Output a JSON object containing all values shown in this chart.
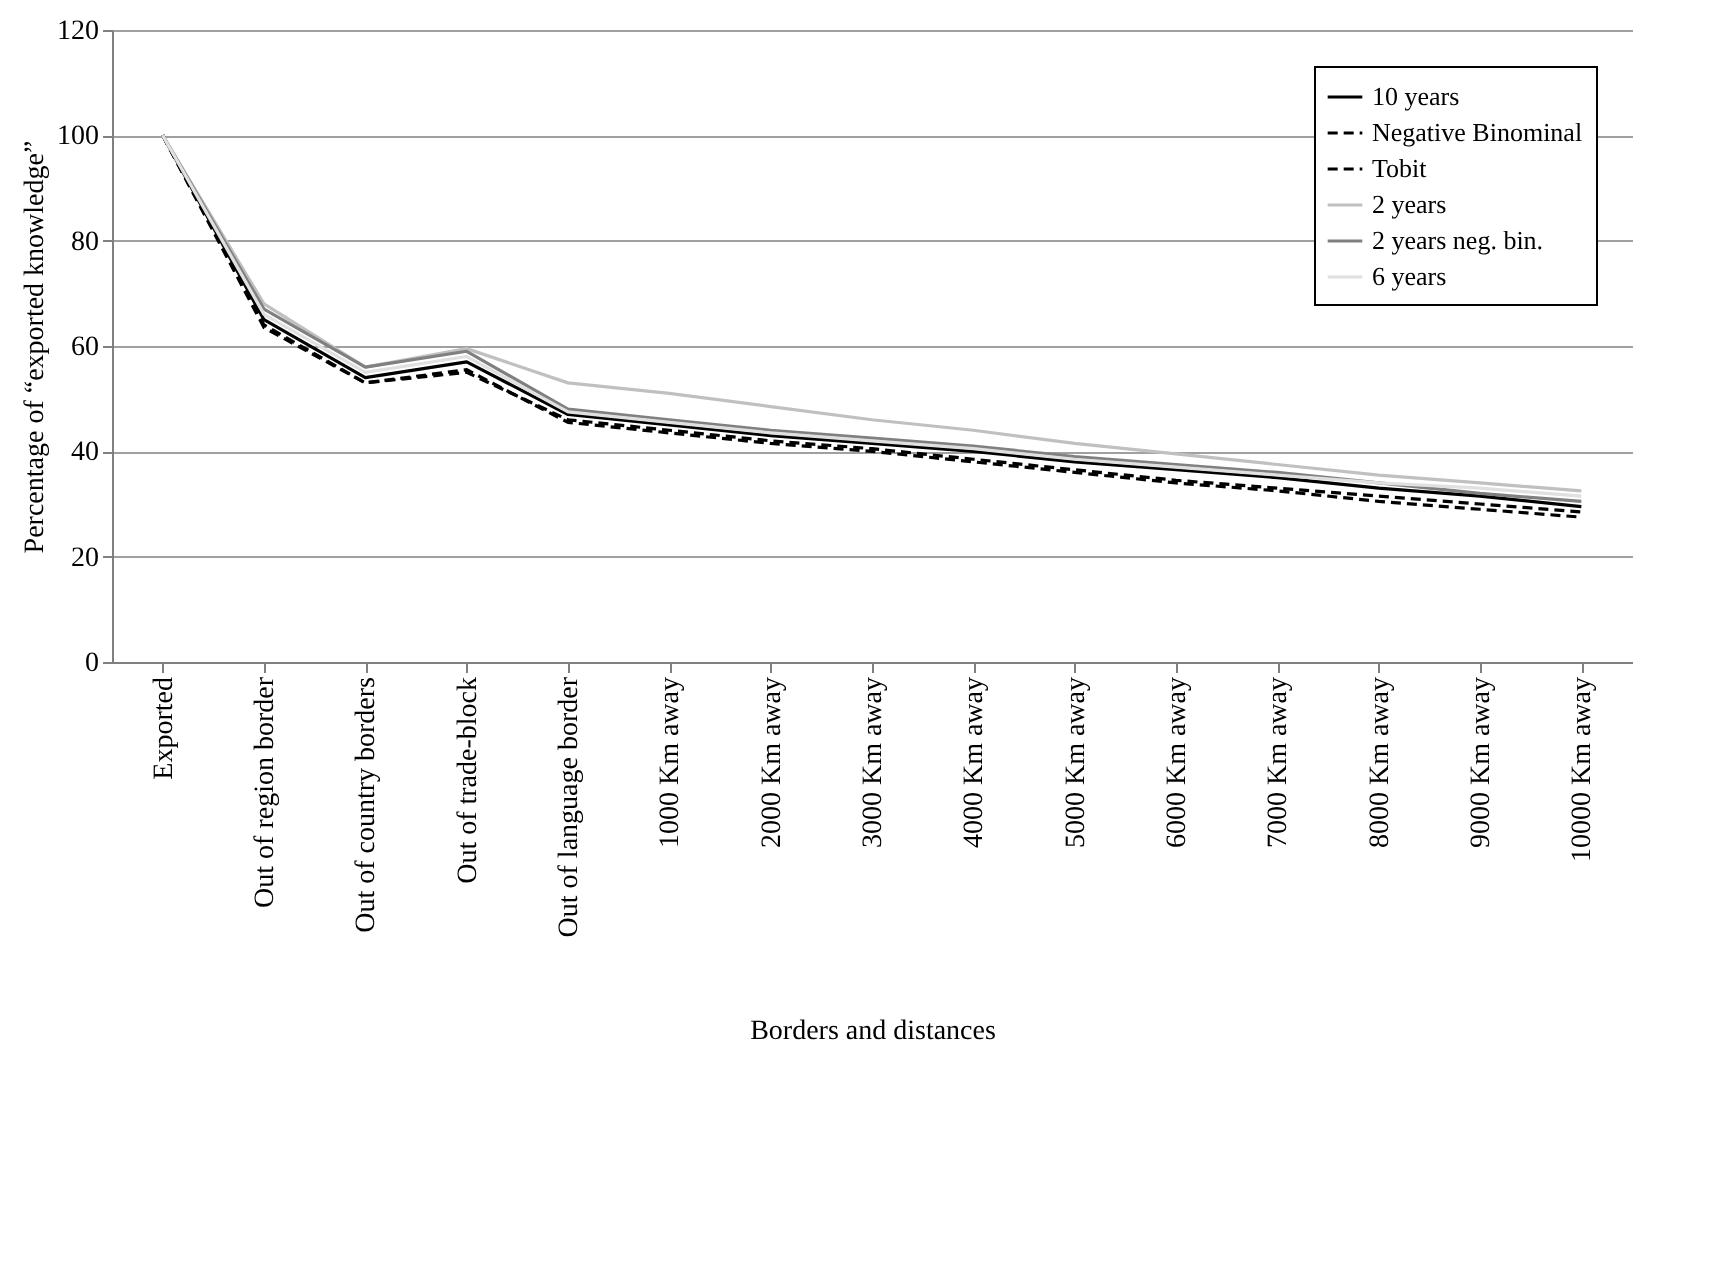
{
  "chart_data": {
    "type": "line",
    "xlabel": "Borders and distances",
    "ylabel": "Percentage of “exported knowledge”",
    "categories": [
      "Exported",
      "Out of region border",
      "Out of country borders",
      "Out of trade-block",
      "Out of language border",
      "1000 Km away",
      "2000 Km away",
      "3000 Km away",
      "4000 Km away",
      "5000 Km away",
      "6000 Km away",
      "7000 Km away",
      "8000 Km away",
      "9000 Km away",
      "10000 Km away"
    ],
    "series": [
      {
        "name": "10 years",
        "color": "#000000",
        "line_style": "solid",
        "values": [
          100,
          65,
          54,
          57,
          47,
          45,
          43,
          41.5,
          40,
          38,
          36.5,
          35,
          33,
          31.5,
          29.5
        ]
      },
      {
        "name": "Negative Binominal",
        "color": "#000000",
        "line_style": "dashed",
        "values": [
          100,
          64,
          53,
          55,
          46,
          44,
          42,
          40.5,
          38.5,
          36.5,
          34.5,
          33,
          31.5,
          30,
          28.5
        ]
      },
      {
        "name": "Tobit",
        "color": "#000000",
        "line_style": "dashed",
        "values": [
          100,
          63.5,
          53,
          55.5,
          45.5,
          43.5,
          41.5,
          40,
          38,
          36,
          34,
          32.5,
          30.5,
          29,
          27.5
        ]
      },
      {
        "name": "2 years",
        "color": "#c0c0c0",
        "line_style": "solid",
        "values": [
          100,
          68,
          56,
          59.5,
          53,
          51,
          48.5,
          46,
          44,
          41.5,
          39.5,
          37.5,
          35.5,
          34,
          32.5
        ]
      },
      {
        "name": "2 years neg. bin.",
        "color": "#808080",
        "line_style": "solid",
        "values": [
          100,
          67,
          56,
          59,
          48,
          46,
          44,
          42.5,
          41,
          39,
          37.5,
          36,
          34,
          32,
          30.5
        ]
      },
      {
        "name": "6 years",
        "color": "#e0e0e0",
        "line_style": "solid",
        "values": [
          100,
          66,
          55,
          58,
          47.5,
          45.5,
          43.5,
          42,
          40.5,
          38.5,
          37,
          35.5,
          34,
          33,
          31.5
        ]
      }
    ],
    "ylim": [
      0,
      120
    ],
    "yticks": [
      0,
      20,
      40,
      60,
      80,
      100,
      120
    ],
    "grid": "y",
    "legend": "top right"
  }
}
